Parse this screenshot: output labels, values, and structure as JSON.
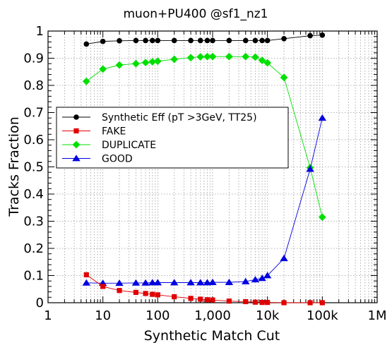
{
  "chart_data": {
    "type": "line",
    "title": "muon+PU400 @sf1_nz1",
    "xlabel": "Synthetic Match Cut",
    "ylabel": "Tracks Fraction",
    "x_scale": "log",
    "xlim": [
      1,
      1000000
    ],
    "ylim": [
      0,
      1
    ],
    "x_ticks": [
      {
        "value": 1,
        "label": "1"
      },
      {
        "value": 10,
        "label": "10"
      },
      {
        "value": 100,
        "label": "100"
      },
      {
        "value": 1000,
        "label": "1,000"
      },
      {
        "value": 10000,
        "label": "10k"
      },
      {
        "value": 100000,
        "label": "100k"
      },
      {
        "value": 1000000,
        "label": "1M"
      }
    ],
    "y_ticks": [
      {
        "value": 0,
        "label": "0"
      },
      {
        "value": 0.1,
        "label": "0.1"
      },
      {
        "value": 0.2,
        "label": "0.2"
      },
      {
        "value": 0.3,
        "label": "0.3"
      },
      {
        "value": 0.4,
        "label": "0.4"
      },
      {
        "value": 0.5,
        "label": "0.5"
      },
      {
        "value": 0.6,
        "label": "0.6"
      },
      {
        "value": 0.7,
        "label": "0.7"
      },
      {
        "value": 0.8,
        "label": "0.8"
      },
      {
        "value": 0.9,
        "label": "0.9"
      },
      {
        "value": 1,
        "label": "1"
      }
    ],
    "grid": true,
    "legend_position": "center-left",
    "x": [
      5,
      10,
      20,
      40,
      60,
      80,
      100,
      200,
      400,
      600,
      800,
      1000,
      2000,
      4000,
      6000,
      8000,
      10000,
      20000,
      60000,
      100000
    ],
    "series": [
      {
        "name": "Synthetic Eff (pT >3GeV, TT25)",
        "color": "#000000",
        "marker": "circle",
        "values": [
          0.952,
          0.962,
          0.964,
          0.965,
          0.965,
          0.965,
          0.965,
          0.965,
          0.965,
          0.965,
          0.965,
          0.965,
          0.965,
          0.965,
          0.965,
          0.965,
          0.965,
          0.972,
          0.983,
          0.985
        ]
      },
      {
        "name": "FAKE",
        "color": "#e00000",
        "marker": "square",
        "values": [
          0.103,
          0.06,
          0.045,
          0.038,
          0.034,
          0.031,
          0.029,
          0.022,
          0.016,
          0.013,
          0.011,
          0.01,
          0.006,
          0.004,
          0.002,
          0.001,
          0.001,
          0.0,
          0.0,
          0.0
        ]
      },
      {
        "name": "DUPLICATE",
        "color": "#00e000",
        "marker": "diamond",
        "values": [
          0.815,
          0.86,
          0.875,
          0.88,
          0.884,
          0.887,
          0.889,
          0.896,
          0.902,
          0.905,
          0.906,
          0.906,
          0.906,
          0.906,
          0.904,
          0.892,
          0.883,
          0.829,
          0.497,
          0.315
        ]
      },
      {
        "name": "GOOD",
        "color": "#0000e0",
        "marker": "triangle",
        "values": [
          0.073,
          0.072,
          0.072,
          0.073,
          0.073,
          0.074,
          0.074,
          0.074,
          0.074,
          0.074,
          0.074,
          0.075,
          0.075,
          0.078,
          0.085,
          0.09,
          0.1,
          0.163,
          0.492,
          0.68
        ]
      }
    ]
  }
}
